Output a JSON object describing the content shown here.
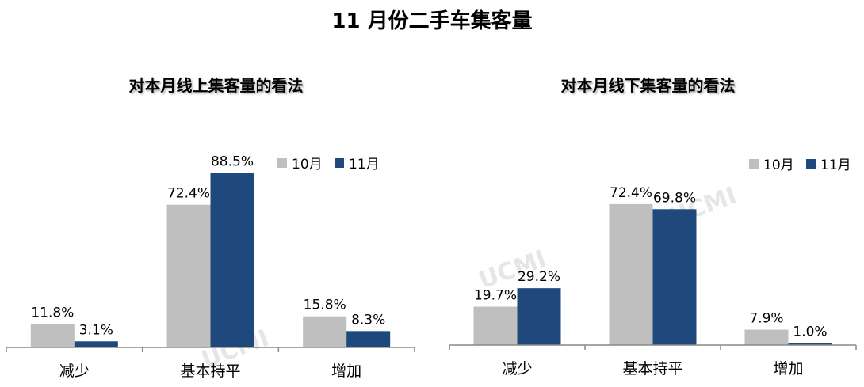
{
  "title": "11 月份二手车集客量",
  "colors": {
    "oct": "#bfbfbf",
    "nov": "#1f497d",
    "axis": "#888888"
  },
  "watermark": "UCMI",
  "chart_data": [
    {
      "type": "bar",
      "title": "对本月线上集客量的看法",
      "categories": [
        "减少",
        "基本持平",
        "增加"
      ],
      "series": [
        {
          "name": "10月",
          "values": [
            11.8,
            72.4,
            15.8
          ],
          "labels": [
            "11.8%",
            "72.4%",
            "15.8%"
          ]
        },
        {
          "name": "11月",
          "values": [
            3.1,
            88.5,
            8.3
          ],
          "labels": [
            "3.1%",
            "88.5%",
            "8.3%"
          ]
        }
      ],
      "legend_position": "top-right",
      "grid": false
    },
    {
      "type": "bar",
      "title": "对本月线下集客量的看法",
      "categories": [
        "减少",
        "基本持平",
        "增加"
      ],
      "series": [
        {
          "name": "10月",
          "values": [
            19.7,
            72.4,
            7.9
          ],
          "labels": [
            "19.7%",
            "72.4%",
            "7.9%"
          ]
        },
        {
          "name": "11月",
          "values": [
            29.2,
            69.8,
            1.0
          ],
          "labels": [
            "29.2%",
            "69.8%",
            "1.0%"
          ]
        }
      ],
      "legend_position": "top-right",
      "grid": false
    }
  ]
}
